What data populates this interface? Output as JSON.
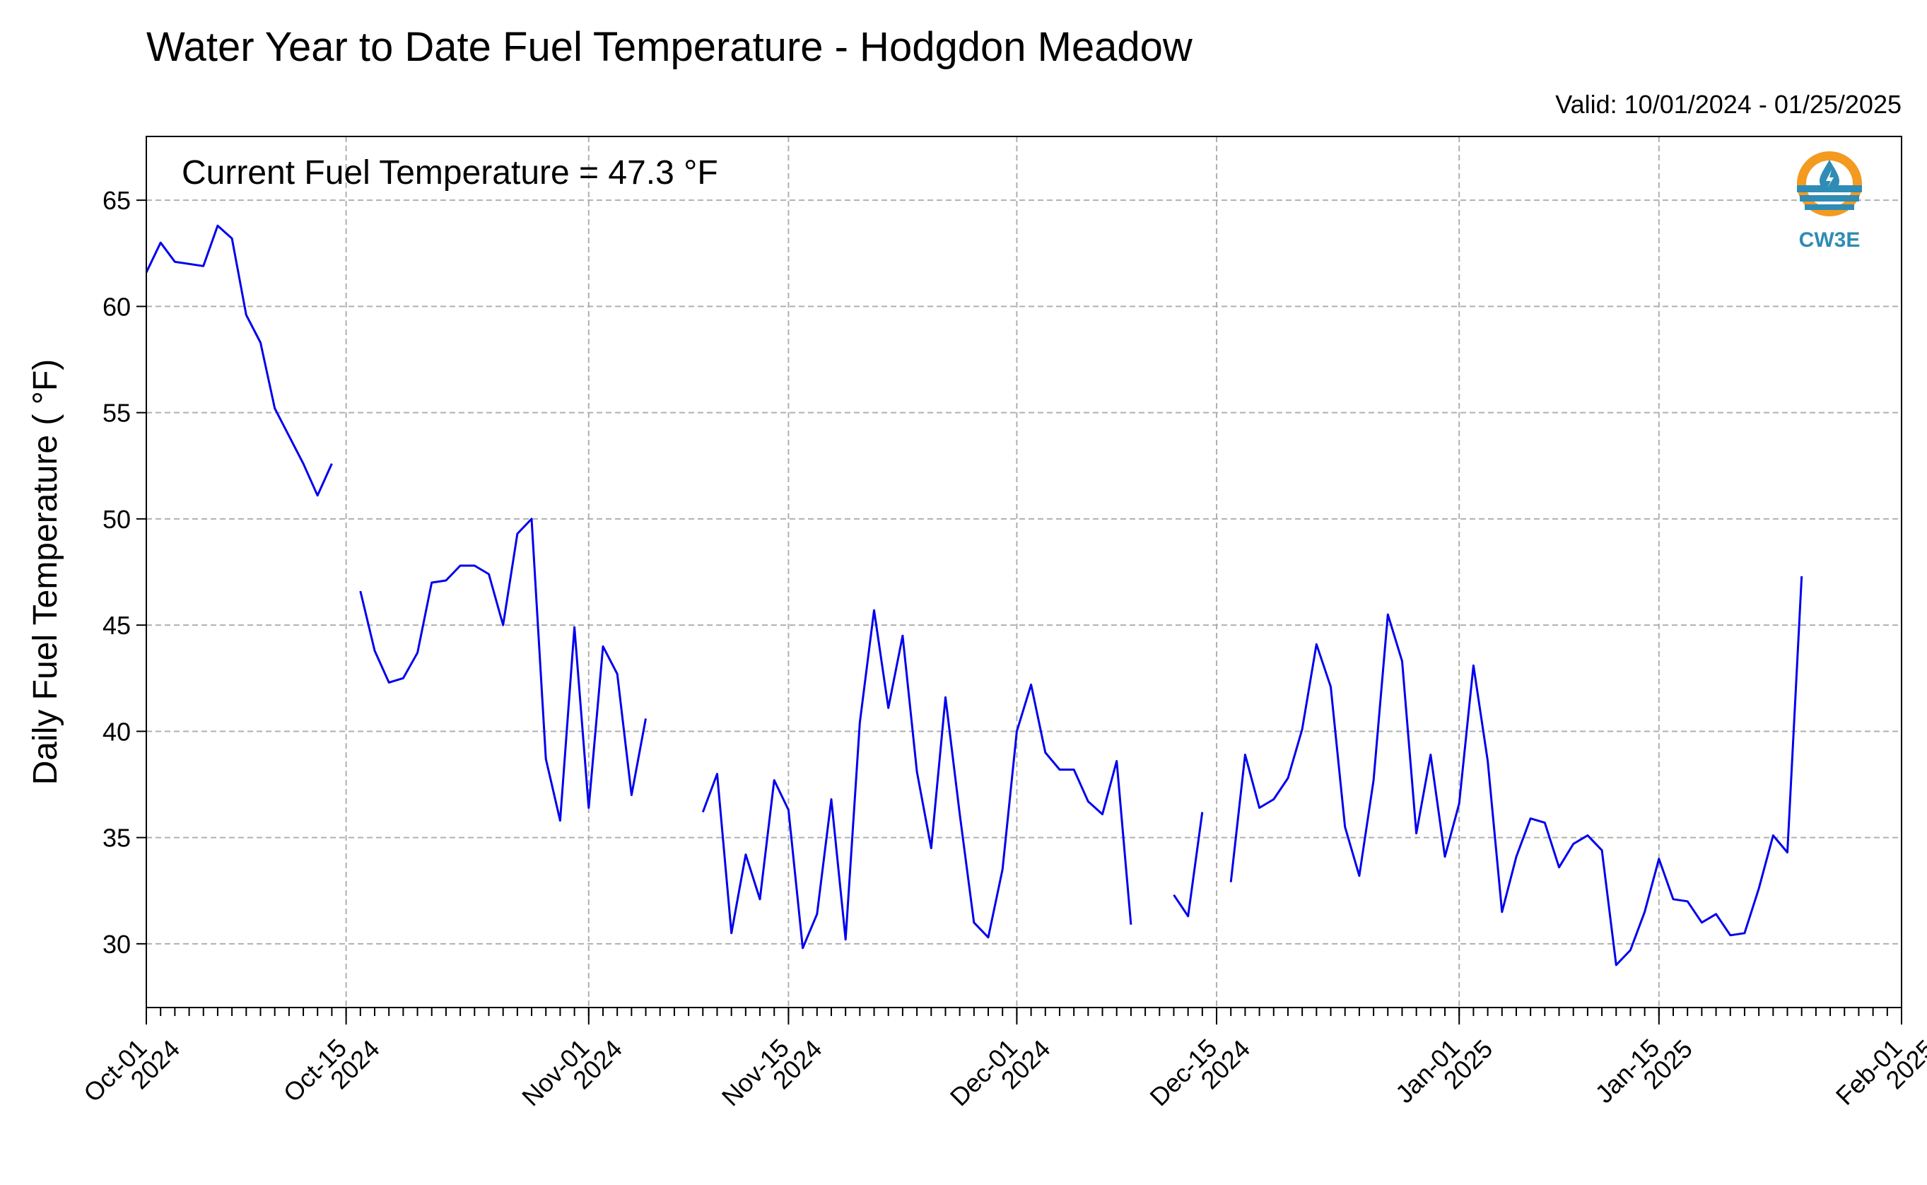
{
  "chart_data": {
    "type": "line",
    "title": "Water Year to Date Fuel Temperature - Hodgdon Meadow",
    "subtitle": "Valid: 10/01/2024 - 01/25/2025",
    "annotation": "Current Fuel Temperature = 47.3  °F",
    "ylabel": "Daily Fuel Temperature ( °F)",
    "xlabel": "",
    "xlim": [
      "2024-10-01",
      "2025-02-01"
    ],
    "ylim": [
      27,
      68
    ],
    "grid": true,
    "y_ticks": [
      30,
      35,
      40,
      45,
      50,
      55,
      60,
      65
    ],
    "x_ticks": [
      {
        "date": "2024-10-01",
        "line1": "Oct-01",
        "line2": "2024"
      },
      {
        "date": "2024-10-15",
        "line1": "Oct-15",
        "line2": "2024"
      },
      {
        "date": "2024-11-01",
        "line1": "Nov-01",
        "line2": "2024"
      },
      {
        "date": "2024-11-15",
        "line1": "Nov-15",
        "line2": "2024"
      },
      {
        "date": "2024-12-01",
        "line1": "Dec-01",
        "line2": "2024"
      },
      {
        "date": "2024-12-15",
        "line1": "Dec-15",
        "line2": "2024"
      },
      {
        "date": "2025-01-01",
        "line1": "Jan-01",
        "line2": "2025"
      },
      {
        "date": "2025-01-15",
        "line1": "Jan-15",
        "line2": "2025"
      },
      {
        "date": "2025-02-01",
        "line1": "Feb-01",
        "line2": "2025"
      }
    ],
    "series": [
      {
        "color": "#0000ee",
        "segments": [
          [
            [
              "2024-10-01",
              61.6
            ],
            [
              "2024-10-02",
              63.0
            ],
            [
              "2024-10-03",
              62.1
            ],
            [
              "2024-10-05",
              61.9
            ],
            [
              "2024-10-06",
              63.8
            ],
            [
              "2024-10-07",
              63.2
            ],
            [
              "2024-10-08",
              59.6
            ],
            [
              "2024-10-09",
              58.3
            ],
            [
              "2024-10-10",
              55.2
            ],
            [
              "2024-10-11",
              53.9
            ],
            [
              "2024-10-12",
              52.6
            ],
            [
              "2024-10-13",
              51.1
            ],
            [
              "2024-10-14",
              52.6
            ]
          ],
          [
            [
              "2024-10-16",
              46.6
            ],
            [
              "2024-10-17",
              43.8
            ],
            [
              "2024-10-18",
              42.3
            ],
            [
              "2024-10-19",
              42.5
            ],
            [
              "2024-10-20",
              43.7
            ],
            [
              "2024-10-21",
              47.0
            ],
            [
              "2024-10-22",
              47.1
            ],
            [
              "2024-10-23",
              47.8
            ],
            [
              "2024-10-24",
              47.8
            ],
            [
              "2024-10-25",
              47.4
            ],
            [
              "2024-10-26",
              45.0
            ],
            [
              "2024-10-27",
              49.3
            ],
            [
              "2024-10-28",
              50.0
            ],
            [
              "2024-10-29",
              38.7
            ],
            [
              "2024-10-30",
              35.8
            ],
            [
              "2024-10-31",
              44.9
            ],
            [
              "2024-11-01",
              36.4
            ],
            [
              "2024-11-02",
              44.0
            ],
            [
              "2024-11-03",
              42.7
            ],
            [
              "2024-11-04",
              37.0
            ],
            [
              "2024-11-05",
              40.6
            ]
          ],
          [
            [
              "2024-11-09",
              36.2
            ],
            [
              "2024-11-10",
              38.0
            ],
            [
              "2024-11-11",
              30.5
            ],
            [
              "2024-11-12",
              34.2
            ],
            [
              "2024-11-13",
              32.1
            ],
            [
              "2024-11-14",
              37.7
            ],
            [
              "2024-11-15",
              36.3
            ],
            [
              "2024-11-16",
              29.8
            ],
            [
              "2024-11-17",
              31.4
            ],
            [
              "2024-11-18",
              36.8
            ],
            [
              "2024-11-19",
              30.2
            ],
            [
              "2024-11-20",
              40.4
            ],
            [
              "2024-11-21",
              45.7
            ],
            [
              "2024-11-22",
              41.1
            ],
            [
              "2024-11-23",
              44.5
            ],
            [
              "2024-11-24",
              38.1
            ],
            [
              "2024-11-25",
              34.5
            ],
            [
              "2024-11-26",
              41.6
            ],
            [
              "2024-11-27",
              36.1
            ],
            [
              "2024-11-28",
              31.0
            ],
            [
              "2024-11-29",
              30.3
            ],
            [
              "2024-11-30",
              33.5
            ],
            [
              "2024-12-01",
              40.0
            ],
            [
              "2024-12-02",
              42.2
            ],
            [
              "2024-12-03",
              39.0
            ],
            [
              "2024-12-04",
              38.2
            ],
            [
              "2024-12-05",
              38.2
            ],
            [
              "2024-12-06",
              36.7
            ],
            [
              "2024-12-07",
              36.1
            ],
            [
              "2024-12-08",
              38.6
            ],
            [
              "2024-12-09",
              30.9
            ]
          ],
          [
            [
              "2024-12-12",
              32.3
            ],
            [
              "2024-12-13",
              31.3
            ],
            [
              "2024-12-14",
              36.2
            ]
          ],
          [
            [
              "2024-12-16",
              32.9
            ],
            [
              "2024-12-17",
              38.9
            ],
            [
              "2024-12-18",
              36.4
            ],
            [
              "2024-12-19",
              36.8
            ],
            [
              "2024-12-20",
              37.8
            ],
            [
              "2024-12-21",
              40.1
            ],
            [
              "2024-12-22",
              44.1
            ],
            [
              "2024-12-23",
              42.1
            ],
            [
              "2024-12-24",
              35.5
            ],
            [
              "2024-12-25",
              33.2
            ],
            [
              "2024-12-26",
              37.7
            ],
            [
              "2024-12-27",
              45.5
            ],
            [
              "2024-12-28",
              43.3
            ],
            [
              "2024-12-29",
              35.2
            ],
            [
              "2024-12-30",
              38.9
            ],
            [
              "2024-12-31",
              34.1
            ],
            [
              "2025-01-01",
              36.6
            ],
            [
              "2025-01-02",
              43.1
            ],
            [
              "2025-01-03",
              38.6
            ],
            [
              "2025-01-04",
              31.5
            ],
            [
              "2025-01-05",
              34.1
            ],
            [
              "2025-01-06",
              35.9
            ],
            [
              "2025-01-07",
              35.7
            ],
            [
              "2025-01-08",
              33.6
            ],
            [
              "2025-01-09",
              34.7
            ],
            [
              "2025-01-10",
              35.1
            ],
            [
              "2025-01-11",
              34.4
            ],
            [
              "2025-01-12",
              29.0
            ],
            [
              "2025-01-13",
              29.7
            ],
            [
              "2025-01-14",
              31.5
            ],
            [
              "2025-01-15",
              34.0
            ],
            [
              "2025-01-16",
              32.1
            ],
            [
              "2025-01-17",
              32.0
            ],
            [
              "2025-01-18",
              31.0
            ],
            [
              "2025-01-19",
              31.4
            ],
            [
              "2025-01-20",
              30.4
            ],
            [
              "2025-01-21",
              30.5
            ],
            [
              "2025-01-22",
              32.6
            ],
            [
              "2025-01-23",
              35.1
            ],
            [
              "2025-01-24",
              34.3
            ],
            [
              "2025-01-25",
              47.3
            ]
          ]
        ]
      }
    ]
  },
  "logo": {
    "text": "CW3E",
    "icon": "cw3e-logo-icon",
    "ring_color": "#f39a1f",
    "water_color": "#2f8cb5"
  }
}
